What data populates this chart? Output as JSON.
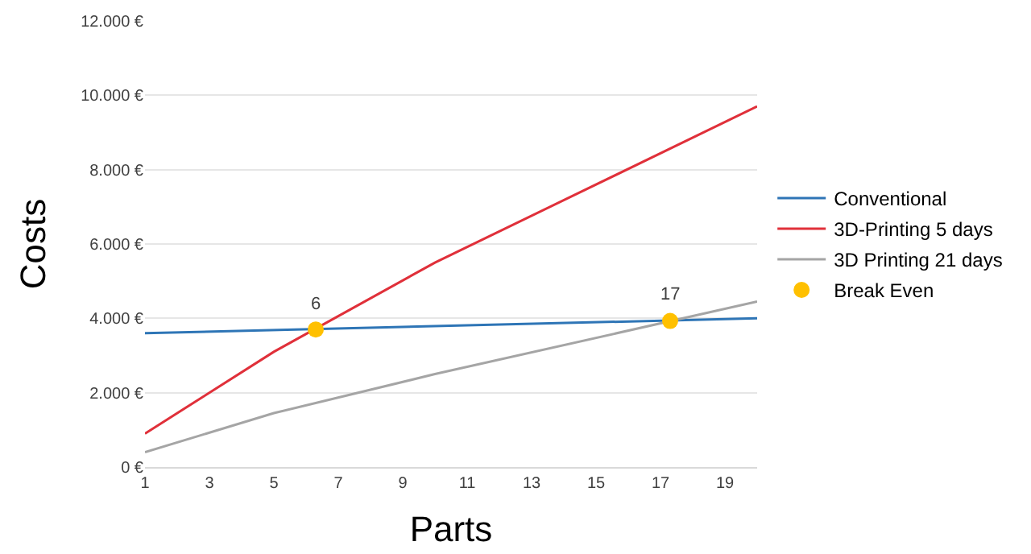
{
  "chart_data": {
    "type": "line",
    "xlabel": "Parts",
    "ylabel": "Costs",
    "xlim": [
      1,
      20
    ],
    "xticks": [
      1,
      3,
      5,
      7,
      9,
      11,
      13,
      15,
      17,
      19
    ],
    "ylim": [
      0,
      12000
    ],
    "yticks": [
      {
        "value": 0,
        "label": "0 €"
      },
      {
        "value": 2000,
        "label": "2.000 €"
      },
      {
        "value": 4000,
        "label": "4.000 €"
      },
      {
        "value": 6000,
        "label": "6.000 €"
      },
      {
        "value": 8000,
        "label": "8.000 €"
      },
      {
        "value": 10000,
        "label": "10.000 €"
      },
      {
        "value": 12000,
        "label": "12.000 €"
      }
    ],
    "grid": "y",
    "legend": "right",
    "series": [
      {
        "name": "Conventional",
        "color": "#2e75b6",
        "x": [
          1,
          20
        ],
        "values": [
          3600,
          4000
        ]
      },
      {
        "name": "3D-Printing 5 days",
        "color": "#e0303a",
        "x": [
          1,
          5,
          10,
          20
        ],
        "values": [
          900,
          3100,
          5500,
          9700
        ]
      },
      {
        "name": "3D Printing 21 days",
        "color": "#a5a5a5",
        "x": [
          1,
          5,
          10,
          20
        ],
        "values": [
          400,
          1450,
          2500,
          4450
        ]
      },
      {
        "name": "Break Even",
        "type": "scatter",
        "marker": "circle",
        "color": "#ffc000",
        "x": [
          6.3,
          17.3
        ],
        "values": [
          3700,
          3930
        ]
      }
    ],
    "annotations": [
      {
        "text": "6",
        "x": 6.3,
        "y": 3700
      },
      {
        "text": "17",
        "x": 17.3,
        "y": 3930
      }
    ]
  }
}
